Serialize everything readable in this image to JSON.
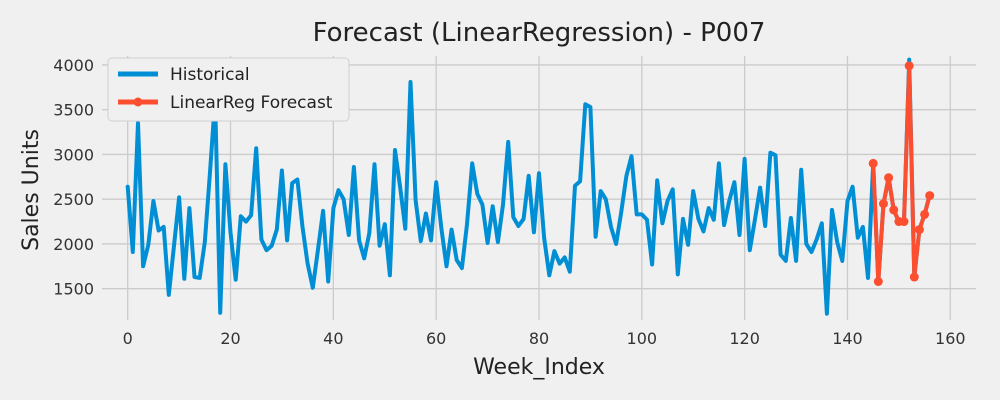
{
  "chart_data": {
    "type": "line",
    "title": "Forecast (LinearRegression) - P007",
    "xlabel": "Week_Index",
    "ylabel": "Sales Units",
    "xlim": [
      -5,
      165
    ],
    "ylim": [
      1150,
      4100
    ],
    "xticks": [
      0,
      20,
      40,
      60,
      80,
      100,
      120,
      140,
      160
    ],
    "yticks": [
      1500,
      2000,
      2500,
      3000,
      3500,
      4000
    ],
    "grid": true,
    "legend_position": "top-left",
    "series": [
      {
        "name": "Historical",
        "color": "#008fd5",
        "marker": false,
        "x": [
          0,
          1,
          2,
          3,
          4,
          5,
          6,
          7,
          8,
          9,
          10,
          11,
          12,
          13,
          14,
          15,
          16,
          17,
          18,
          19,
          20,
          21,
          22,
          23,
          24,
          25,
          26,
          27,
          28,
          29,
          30,
          31,
          32,
          33,
          34,
          35,
          36,
          37,
          38,
          39,
          40,
          41,
          42,
          43,
          44,
          45,
          46,
          47,
          48,
          49,
          50,
          51,
          52,
          53,
          54,
          55,
          56,
          57,
          58,
          59,
          60,
          61,
          62,
          63,
          64,
          65,
          66,
          67,
          68,
          69,
          70,
          71,
          72,
          73,
          74,
          75,
          76,
          77,
          78,
          79,
          80,
          81,
          82,
          83,
          84,
          85,
          86,
          87,
          88,
          89,
          90,
          91,
          92,
          93,
          94,
          95,
          96,
          97,
          98,
          99,
          100,
          101,
          102,
          103,
          104,
          105,
          106,
          107,
          108,
          109,
          110,
          111,
          112,
          113,
          114,
          115,
          116,
          117,
          118,
          119,
          120,
          121,
          122,
          123,
          124,
          125,
          126,
          127,
          128,
          129,
          130,
          131,
          132,
          133,
          134,
          135,
          136,
          137,
          138,
          139,
          140,
          141,
          142,
          143,
          144,
          145,
          146,
          147,
          148,
          149,
          150,
          151,
          152,
          153,
          154,
          155,
          156
        ],
        "values": [
          2640,
          1910,
          3350,
          1750,
          1990,
          2480,
          2150,
          2190,
          1430,
          1980,
          2520,
          1610,
          2400,
          1630,
          1620,
          2020,
          2800,
          3620,
          1230,
          2890,
          2130,
          1600,
          2310,
          2250,
          2320,
          3070,
          2050,
          1930,
          1980,
          2160,
          2820,
          2040,
          2680,
          2720,
          2190,
          1780,
          1510,
          1930,
          2370,
          1580,
          2400,
          2600,
          2500,
          2100,
          2860,
          2040,
          1840,
          2120,
          2890,
          1980,
          2220,
          1650,
          3050,
          2630,
          2170,
          3810,
          2490,
          2030,
          2340,
          2040,
          2690,
          2180,
          1750,
          2160,
          1820,
          1730,
          2220,
          2900,
          2560,
          2440,
          2010,
          2420,
          2020,
          2440,
          3140,
          2300,
          2200,
          2280,
          2760,
          2130,
          2790,
          2070,
          1650,
          1920,
          1780,
          1850,
          1690,
          2650,
          2700,
          3560,
          3530,
          2080,
          2590,
          2500,
          2190,
          2000,
          2360,
          2760,
          2980,
          2330,
          2330,
          2270,
          1770,
          2710,
          2230,
          2480,
          2610,
          1660,
          2280,
          1990,
          2590,
          2280,
          2140,
          2400,
          2270,
          2900,
          2210,
          2480,
          2690,
          2100,
          2950,
          1930,
          2270,
          2630,
          2200,
          3020,
          2990,
          1880,
          1810,
          2290,
          1810,
          2830,
          2000,
          1910,
          2050,
          2230,
          1220,
          2380,
          2020,
          1810,
          2480,
          2640,
          2070,
          2190,
          1620,
          2900,
          1580,
          2450,
          2740,
          2380,
          2250,
          2250,
          4060,
          1630,
          2160,
          2330,
          2550
        ]
      },
      {
        "name": "LinearReg Forecast",
        "color": "#fc4f30",
        "marker": true,
        "x": [
          145,
          146,
          147,
          148,
          149,
          150,
          151,
          152,
          153,
          154,
          155,
          156
        ],
        "values": [
          2900,
          1580,
          2450,
          2740,
          2380,
          2250,
          2250,
          3990,
          1630,
          2160,
          2330,
          2540
        ]
      }
    ]
  }
}
